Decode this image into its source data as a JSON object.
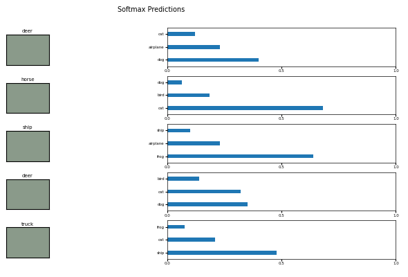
{
  "title": "Softmax Predictions",
  "chart_data": [
    {
      "type": "bar",
      "orientation": "horizontal",
      "label": "deer",
      "categories": [
        "cat",
        "airplane",
        "dog"
      ],
      "values": [
        0.12,
        0.23,
        0.4
      ],
      "color": "#1f77b4",
      "xlim": [
        0,
        1
      ],
      "xticks": [
        {
          "value": 0,
          "label": "0.0"
        },
        {
          "value": 0.5,
          "label": "0.5"
        },
        {
          "value": 1,
          "label": "1.0"
        }
      ]
    },
    {
      "type": "bar",
      "orientation": "horizontal",
      "label": "horse",
      "categories": [
        "dog",
        "bird",
        "cat"
      ],
      "values": [
        0.065,
        0.185,
        0.68
      ],
      "color": "#1f77b4",
      "xlim": [
        0,
        1
      ],
      "xticks": [
        {
          "value": 0,
          "label": "0.0"
        },
        {
          "value": 0.5,
          "label": "0.5"
        },
        {
          "value": 1,
          "label": "1.0"
        }
      ]
    },
    {
      "type": "bar",
      "orientation": "horizontal",
      "label": "ship",
      "categories": [
        "ship",
        "airplane",
        "frog"
      ],
      "values": [
        0.1,
        0.23,
        0.64
      ],
      "color": "#1f77b4",
      "xlim": [
        0,
        1
      ],
      "xticks": [
        {
          "value": 0,
          "label": "0.0"
        },
        {
          "value": 0.5,
          "label": "0.5"
        },
        {
          "value": 1,
          "label": "1.0"
        }
      ]
    },
    {
      "type": "bar",
      "orientation": "horizontal",
      "label": "deer",
      "categories": [
        "bird",
        "cat",
        "dog"
      ],
      "values": [
        0.14,
        0.32,
        0.35
      ],
      "color": "#1f77b4",
      "xlim": [
        0,
        1
      ],
      "xticks": [
        {
          "value": 0,
          "label": "0.0"
        },
        {
          "value": 0.5,
          "label": "0.5"
        },
        {
          "value": 1,
          "label": "1.0"
        }
      ]
    },
    {
      "type": "bar",
      "orientation": "horizontal",
      "label": "truck",
      "categories": [
        "frog",
        "cat",
        "ship"
      ],
      "values": [
        0.075,
        0.21,
        0.48
      ],
      "color": "#1f77b4",
      "xlim": [
        0,
        1
      ],
      "xticks": [
        {
          "value": 0,
          "label": "0.0"
        },
        {
          "value": 0.5,
          "label": "0.5"
        },
        {
          "value": 1,
          "label": "1.0"
        }
      ]
    }
  ]
}
